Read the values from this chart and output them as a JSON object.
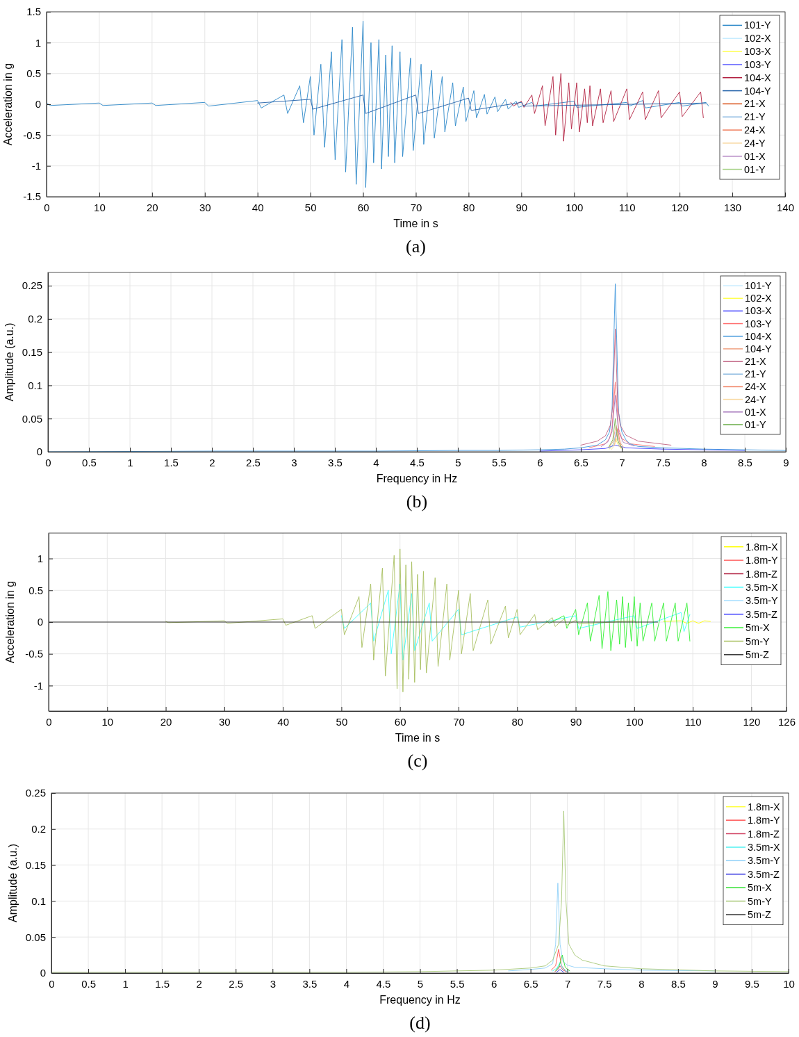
{
  "chart_data": [
    {
      "type": "line",
      "xlabel": "Time in s",
      "ylabel": "Acceleration in g",
      "xlim": [
        0,
        140
      ],
      "ylim": [
        -1.5,
        1.5
      ],
      "xticks": [
        0,
        10,
        20,
        30,
        40,
        50,
        60,
        70,
        80,
        90,
        100,
        110,
        120,
        130,
        140
      ],
      "yticks": [
        -1.5,
        -1,
        -0.5,
        0,
        0.5,
        1,
        1.5
      ],
      "grid": true,
      "legend": "top right",
      "annotations": [
        "(a)"
      ],
      "series": [
        {
          "name": "101-Y",
          "color": "#2a87c8",
          "x": [
            0,
            0.7,
            10,
            10.7,
            20,
            20.7,
            30,
            30.7,
            40,
            40.7,
            45,
            45.7,
            48,
            48.7,
            50,
            50.7,
            52,
            52.7,
            54,
            54.7,
            56,
            56.7,
            58,
            58.7,
            60,
            60.5,
            61.5,
            62,
            63,
            63.5,
            64.3,
            64.8,
            65.5,
            66,
            67,
            67.5,
            69,
            69.5,
            71,
            71.5,
            73,
            73.5,
            75,
            75.5,
            77,
            77.5,
            79,
            79.5,
            81,
            81.5,
            83,
            83.5,
            85,
            85.5,
            87,
            87.5,
            89,
            89.5,
            92,
            92.5,
            100,
            100.5,
            110,
            110.5,
            113,
            113.5,
            120,
            120.5,
            125,
            125.5
          ],
          "values": [
            0.02,
            -0.02,
            0.02,
            -0.02,
            0.02,
            -0.02,
            0.03,
            -0.03,
            0.06,
            -0.06,
            0.15,
            -0.15,
            0.3,
            -0.3,
            0.45,
            -0.5,
            0.65,
            -0.7,
            0.85,
            -0.9,
            1.05,
            -1.1,
            1.25,
            -1.3,
            1.35,
            -1.35,
            1,
            -0.95,
            1.05,
            -1.05,
            0.8,
            -0.85,
            0.95,
            -0.95,
            0.85,
            -0.85,
            0.75,
            -0.75,
            0.65,
            -0.65,
            0.55,
            -0.55,
            0.45,
            -0.45,
            0.35,
            -0.35,
            0.28,
            -0.28,
            0.22,
            -0.22,
            0.16,
            -0.16,
            0.12,
            -0.12,
            0.08,
            -0.08,
            0.05,
            -0.05,
            0.03,
            -0.03,
            0.05,
            -0.05,
            0.03,
            -0.03,
            0.06,
            -0.06,
            0.03,
            -0.03,
            0.03,
            -0.03
          ]
        },
        {
          "name": "102-X",
          "color": "#c8ecff"
        },
        {
          "name": "103-X",
          "color": "#ffff50"
        },
        {
          "name": "103-Y",
          "color": "#6060ff"
        },
        {
          "name": "104-X",
          "color": "#b22040",
          "x": [
            88,
            88.5,
            90,
            90.5,
            92,
            92.5,
            94,
            94.5,
            96,
            96.5,
            97.5,
            98,
            99,
            99.5,
            100.5,
            101,
            102,
            102.5,
            103,
            103.5,
            105,
            105.5,
            107,
            107.5,
            110,
            110.5,
            113,
            113.5,
            116,
            116.5,
            120,
            120.5,
            124,
            124.5
          ],
          "values": [
            0.03,
            -0.03,
            0.05,
            -0.05,
            0.15,
            -0.15,
            0.3,
            -0.35,
            0.45,
            -0.5,
            0.5,
            -0.6,
            0.35,
            -0.4,
            0.35,
            -0.45,
            0.25,
            -0.3,
            0.3,
            -0.35,
            0.25,
            -0.3,
            0.22,
            -0.28,
            0.25,
            -0.25,
            0.2,
            -0.25,
            0.22,
            -0.22,
            0.2,
            -0.2,
            0.2,
            -0.22
          ]
        },
        {
          "name": "104-Y",
          "color": "#1f5fa8",
          "x": [
            40,
            50,
            50.5,
            60,
            60.5,
            70,
            70.5,
            80,
            80.5,
            90,
            90.5,
            125
          ],
          "values": [
            0.02,
            0.08,
            -0.08,
            0.15,
            -0.15,
            0.15,
            -0.15,
            0.1,
            -0.1,
            0.03,
            -0.03,
            0.02
          ]
        },
        {
          "name": "21-X",
          "color": "#d95319"
        },
        {
          "name": "21-Y",
          "color": "#8ab8e0"
        },
        {
          "name": "24-X",
          "color": "#f08060"
        },
        {
          "name": "24-Y",
          "color": "#f8d8a0"
        },
        {
          "name": "01-X",
          "color": "#b080c0"
        },
        {
          "name": "01-Y",
          "color": "#a0d080"
        }
      ]
    },
    {
      "type": "line",
      "xlabel": "Frequency in Hz",
      "ylabel": "Amplitude (a.u.)",
      "xlim": [
        0,
        9
      ],
      "ylim": [
        0,
        0.27
      ],
      "xticks": [
        0,
        0.5,
        1,
        1.5,
        2,
        2.5,
        3,
        3.5,
        4,
        4.5,
        5,
        5.5,
        6,
        6.5,
        7,
        7.5,
        8,
        8.5,
        9
      ],
      "yticks": [
        0,
        0.05,
        0.1,
        0.15,
        0.2,
        0.25
      ],
      "grid": true,
      "legend": "top right",
      "annotations": [
        "(b)"
      ],
      "series": [
        {
          "name": "101-Y",
          "color": "#c8ecff"
        },
        {
          "name": "102-X",
          "color": "#ffff50",
          "x": [
            6.85,
            6.89,
            6.92,
            6.95,
            6.99
          ],
          "values": [
            0.004,
            0.01,
            0.02,
            0.012,
            0.005
          ]
        },
        {
          "name": "103-X",
          "color": "#4040ff",
          "x": [
            6,
            6.5,
            6.8,
            6.92,
            7.05,
            7.5,
            8,
            8.5
          ],
          "values": [
            0.001,
            0.003,
            0.005,
            0.01,
            0.006,
            0.004,
            0.003,
            0.002
          ]
        },
        {
          "name": "103-Y",
          "color": "#ff7070",
          "x": [
            6.6,
            6.8,
            6.85,
            6.88,
            6.92,
            6.96,
            7.0,
            7.1,
            7.4
          ],
          "values": [
            0.006,
            0.012,
            0.02,
            0.035,
            0.105,
            0.035,
            0.02,
            0.012,
            0.008
          ]
        },
        {
          "name": "104-X",
          "color": "#3d95db",
          "x": [
            0,
            2,
            4,
            5,
            5.5,
            6,
            6.3,
            6.5,
            6.7,
            6.8,
            6.85,
            6.88,
            6.92,
            6.96,
            7.0,
            7.05,
            7.1,
            7.2,
            7.5,
            8,
            8.5,
            9
          ],
          "values": [
            0,
            0.001,
            0.001,
            0.002,
            0.002,
            0.003,
            0.004,
            0.006,
            0.01,
            0.018,
            0.03,
            0.06,
            0.253,
            0.06,
            0.03,
            0.018,
            0.012,
            0.008,
            0.006,
            0.004,
            0.003,
            0.002
          ]
        },
        {
          "name": "104-Y",
          "color": "#f0a080",
          "x": [
            6.84,
            6.89,
            6.93,
            6.97,
            7.02
          ],
          "values": [
            0.006,
            0.015,
            0.04,
            0.015,
            0.007
          ]
        },
        {
          "name": "21-X",
          "color": "#c06080",
          "x": [
            6.5,
            6.7,
            6.8,
            6.86,
            6.89,
            6.92,
            6.95,
            6.98,
            7.05,
            7.2,
            7.6
          ],
          "values": [
            0.01,
            0.016,
            0.024,
            0.04,
            0.07,
            0.185,
            0.07,
            0.04,
            0.025,
            0.016,
            0.01
          ]
        },
        {
          "name": "21-Y",
          "color": "#8ab8e0",
          "x": [
            6.85,
            6.9,
            6.93,
            6.96,
            7.01
          ],
          "values": [
            0.005,
            0.012,
            0.03,
            0.012,
            0.004
          ]
        },
        {
          "name": "24-X",
          "color": "#f08060",
          "x": [
            6.91,
            6.95,
            6.99
          ],
          "values": [
            0.01,
            0.035,
            0.006
          ]
        },
        {
          "name": "24-Y",
          "color": "#f8d8a0",
          "x": [
            6.87,
            6.9,
            6.94,
            6.98
          ],
          "values": [
            0.003,
            0.008,
            0.02,
            0.006
          ]
        },
        {
          "name": "01-X",
          "color": "#a070b8",
          "x": [
            6.75,
            6.83,
            6.88,
            6.92,
            6.96,
            7.02,
            7.15
          ],
          "values": [
            0.008,
            0.015,
            0.03,
            0.085,
            0.03,
            0.014,
            0.009
          ]
        },
        {
          "name": "01-Y",
          "color": "#70b050",
          "x": [
            6.84,
            6.89,
            6.92,
            6.95,
            7.0
          ],
          "values": [
            0.007,
            0.018,
            0.05,
            0.017,
            0.006
          ]
        }
      ]
    },
    {
      "type": "line",
      "xlabel": "Time in s",
      "ylabel": "Acceleration in g",
      "xlim": [
        0,
        126
      ],
      "ylim": [
        -1.4,
        1.4
      ],
      "xticks": [
        0,
        10,
        20,
        30,
        40,
        50,
        60,
        70,
        80,
        90,
        100,
        110,
        120,
        126
      ],
      "yticks": [
        -1,
        -0.5,
        0,
        0.5,
        1
      ],
      "grid": true,
      "legend": "top right",
      "annotations": [
        "(c)"
      ],
      "series": [
        {
          "name": "1.8m-X",
          "color": "#ffff00",
          "x": [
            105,
            108,
            109,
            110,
            111,
            112,
            113
          ],
          "values": [
            0.01,
            0.02,
            -0.02,
            0.02,
            -0.02,
            0.02,
            0.01
          ]
        },
        {
          "name": "1.8m-Y",
          "color": "#ff6060"
        },
        {
          "name": "1.8m-Z",
          "color": "#b02040"
        },
        {
          "name": "3.5m-X",
          "color": "#40ffff",
          "x": [
            50,
            50.5,
            55,
            55.5,
            58,
            58.5,
            60,
            60.5,
            62,
            62.5,
            65,
            65.5,
            70,
            70.5,
            80,
            80.5,
            90,
            90.5,
            100,
            100.5,
            108,
            108.5,
            109.5
          ],
          "values": [
            0.1,
            -0.1,
            0.3,
            -0.3,
            0.5,
            -0.5,
            0.6,
            -0.6,
            0.45,
            -0.45,
            0.3,
            -0.3,
            0.2,
            -0.2,
            0.08,
            -0.08,
            0.1,
            -0.1,
            0.1,
            -0.1,
            0.15,
            -0.15,
            0.12
          ]
        },
        {
          "name": "3.5m-Y",
          "color": "#a0dcff"
        },
        {
          "name": "3.5m-Z",
          "color": "#4040ff"
        },
        {
          "name": "5m-X",
          "color": "#30f030",
          "x": [
            85,
            85.5,
            88,
            88.5,
            90,
            90.5,
            92,
            92.5,
            94,
            94.5,
            95.5,
            96,
            97,
            97.5,
            98,
            98.5,
            99,
            99.5,
            100,
            100.5,
            101,
            101.5,
            103,
            103.5,
            105,
            105.5,
            107,
            107.5,
            109,
            109.5
          ],
          "values": [
            0.02,
            -0.02,
            0.1,
            -0.1,
            0.2,
            -0.2,
            0.3,
            -0.3,
            0.42,
            -0.42,
            0.48,
            -0.45,
            0.35,
            -0.35,
            0.4,
            -0.4,
            0.3,
            -0.3,
            0.4,
            -0.38,
            0.3,
            -0.3,
            0.3,
            -0.3,
            0.3,
            -0.3,
            0.3,
            -0.3,
            0.3,
            -0.3
          ]
        },
        {
          "name": "5m-Y",
          "color": "#a8c060",
          "x": [
            20,
            20.5,
            30,
            30.5,
            40,
            40.5,
            45,
            45.5,
            50,
            50.5,
            53,
            53.5,
            55,
            55.5,
            57,
            57.5,
            59,
            59.5,
            60,
            60.5,
            61,
            61.5,
            62,
            62.5,
            63,
            63.5,
            64,
            64.5,
            66,
            66.5,
            68,
            68.5,
            70,
            70.5,
            72,
            72.5,
            75,
            75.5,
            78,
            78.5,
            80,
            80.5,
            83,
            83.5,
            86,
            86.5,
            88,
            88.5,
            90,
            90.5,
            100,
            100.5
          ],
          "values": [
            0.01,
            -0.01,
            0.02,
            -0.02,
            0.05,
            -0.05,
            0.1,
            -0.1,
            0.2,
            -0.2,
            0.4,
            -0.4,
            0.6,
            -0.6,
            0.85,
            -0.85,
            1.05,
            -1.05,
            1.15,
            -1.1,
            0.9,
            -0.9,
            0.95,
            -0.95,
            0.75,
            -0.75,
            0.8,
            -0.8,
            0.7,
            -0.7,
            0.6,
            -0.6,
            0.5,
            -0.5,
            0.45,
            -0.45,
            0.35,
            -0.35,
            0.25,
            -0.25,
            0.2,
            -0.2,
            0.12,
            -0.12,
            0.07,
            -0.07,
            0.05,
            -0.05,
            0.03,
            -0.03,
            0.02,
            -0.02
          ]
        },
        {
          "name": "5m-Z",
          "color": "#202020",
          "x": [
            0,
            104
          ],
          "values": [
            0,
            0
          ]
        }
      ]
    },
    {
      "type": "line",
      "xlabel": "Frequency in Hz",
      "ylabel": "Amplitude (a.u.)",
      "xlim": [
        0,
        10
      ],
      "ylim": [
        0,
        0.25
      ],
      "xticks": [
        0,
        0.5,
        1,
        1.5,
        2,
        2.5,
        3,
        3.5,
        4,
        4.5,
        5,
        5.5,
        6,
        6.5,
        7,
        7.5,
        8,
        8.5,
        9,
        9.5,
        10
      ],
      "yticks": [
        0,
        0.05,
        0.1,
        0.15,
        0.2,
        0.25
      ],
      "grid": true,
      "legend": "top right",
      "annotations": [
        "(d)"
      ],
      "series": [
        {
          "name": "1.8m-X",
          "color": "#ffff40"
        },
        {
          "name": "1.8m-Y",
          "color": "#ff5050",
          "x": [
            6.78,
            6.84,
            6.88,
            6.92,
            6.97
          ],
          "values": [
            0.004,
            0.01,
            0.033,
            0.01,
            0.004
          ]
        },
        {
          "name": "1.8m-Z",
          "color": "#d04060",
          "x": [
            6.83,
            6.87,
            6.9,
            6.94,
            6.99
          ],
          "values": [
            0.002,
            0.005,
            0.01,
            0.004,
            0.002
          ]
        },
        {
          "name": "3.5m-X",
          "color": "#40f0f0",
          "x": [
            6.8,
            6.86,
            6.9,
            6.94,
            7.0
          ],
          "values": [
            0.003,
            0.007,
            0.015,
            0.006,
            0.002
          ]
        },
        {
          "name": "3.5m-Y",
          "color": "#90d0f8",
          "x": [
            6.2,
            6.5,
            6.7,
            6.8,
            6.84,
            6.87,
            6.9,
            6.94,
            7,
            7.1,
            7.5,
            8,
            9
          ],
          "values": [
            0.003,
            0.005,
            0.007,
            0.013,
            0.04,
            0.125,
            0.04,
            0.016,
            0.011,
            0.008,
            0.006,
            0.004,
            0.003
          ]
        },
        {
          "name": "3.5m-Z",
          "color": "#3030e0",
          "x": [
            6.85,
            6.9,
            6.95
          ],
          "values": [
            0.001,
            0.005,
            0.001
          ]
        },
        {
          "name": "5m-X",
          "color": "#30e030",
          "x": [
            6.84,
            6.89,
            6.93,
            6.97,
            7.03
          ],
          "values": [
            0.003,
            0.01,
            0.025,
            0.008,
            0.003
          ]
        },
        {
          "name": "5m-Y",
          "color": "#a8c878",
          "x": [
            0,
            2,
            4,
            5,
            6,
            6.5,
            6.7,
            6.8,
            6.88,
            6.92,
            6.95,
            6.98,
            7.02,
            7.1,
            7.2,
            7.5,
            8,
            9,
            10
          ],
          "values": [
            0.001,
            0.001,
            0.001,
            0.002,
            0.004,
            0.007,
            0.01,
            0.018,
            0.04,
            0.1,
            0.225,
            0.1,
            0.04,
            0.025,
            0.018,
            0.01,
            0.006,
            0.003,
            0.002
          ]
        },
        {
          "name": "5m-Z",
          "color": "#404040"
        }
      ]
    }
  ]
}
